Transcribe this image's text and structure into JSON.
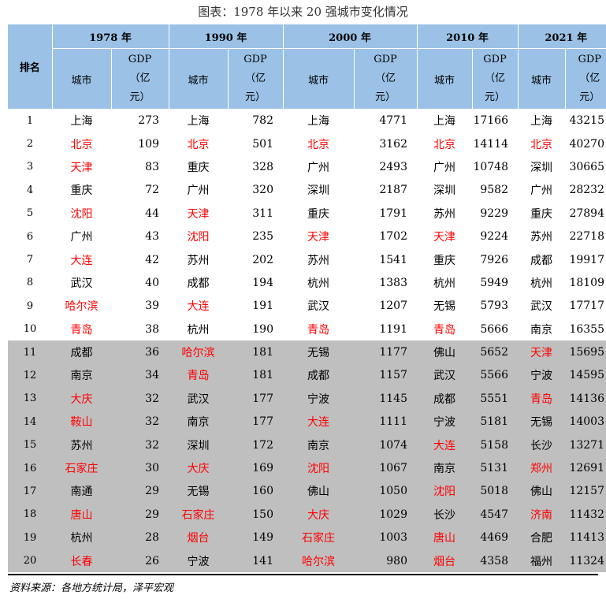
{
  "title": "图表：1978 年以来 20 强城市变化情况",
  "header": {
    "rank_label": "排名",
    "city_label": "城市",
    "gdp_line1": "GDP",
    "gdp_line2": "（亿",
    "gdp_line3": "元）",
    "years": [
      "1978 年",
      "1990 年",
      "2000 年",
      "2010 年",
      "2021 年"
    ]
  },
  "red_color": "#ff0000",
  "rows": [
    {
      "rank": "1",
      "cells": [
        [
          "上海",
          "273",
          false
        ],
        [
          "上海",
          "782",
          false
        ],
        [
          "上海",
          "4771",
          false
        ],
        [
          "上海",
          "17166",
          false
        ],
        [
          "上海",
          "43215",
          false
        ]
      ]
    },
    {
      "rank": "2",
      "cells": [
        [
          "北京",
          "109",
          true
        ],
        [
          "北京",
          "501",
          true
        ],
        [
          "北京",
          "3162",
          true
        ],
        [
          "北京",
          "14114",
          true
        ],
        [
          "北京",
          "40270",
          true
        ]
      ]
    },
    {
      "rank": "3",
      "cells": [
        [
          "天津",
          "83",
          true
        ],
        [
          "重庆",
          "328",
          false
        ],
        [
          "广州",
          "2493",
          false
        ],
        [
          "广州",
          "10748",
          false
        ],
        [
          "深圳",
          "30665",
          false
        ]
      ]
    },
    {
      "rank": "4",
      "cells": [
        [
          "重庆",
          "72",
          false
        ],
        [
          "广州",
          "320",
          false
        ],
        [
          "深圳",
          "2187",
          false
        ],
        [
          "深圳",
          "9582",
          false
        ],
        [
          "广州",
          "28232",
          false
        ]
      ]
    },
    {
      "rank": "5",
      "cells": [
        [
          "沈阳",
          "44",
          true
        ],
        [
          "天津",
          "311",
          true
        ],
        [
          "重庆",
          "1791",
          false
        ],
        [
          "苏州",
          "9229",
          false
        ],
        [
          "重庆",
          "27894",
          false
        ]
      ]
    },
    {
      "rank": "6",
      "cells": [
        [
          "广州",
          "43",
          false
        ],
        [
          "沈阳",
          "235",
          true
        ],
        [
          "天津",
          "1702",
          true
        ],
        [
          "天津",
          "9224",
          true
        ],
        [
          "苏州",
          "22718",
          false
        ]
      ]
    },
    {
      "rank": "7",
      "cells": [
        [
          "大连",
          "42",
          true
        ],
        [
          "苏州",
          "202",
          false
        ],
        [
          "苏州",
          "1541",
          false
        ],
        [
          "重庆",
          "7926",
          false
        ],
        [
          "成都",
          "19917",
          false
        ]
      ]
    },
    {
      "rank": "8",
      "cells": [
        [
          "武汉",
          "40",
          false
        ],
        [
          "成都",
          "194",
          false
        ],
        [
          "杭州",
          "1383",
          false
        ],
        [
          "杭州",
          "5949",
          false
        ],
        [
          "杭州",
          "18109",
          false
        ]
      ]
    },
    {
      "rank": "9",
      "cells": [
        [
          "哈尔滨",
          "39",
          true
        ],
        [
          "大连",
          "191",
          true
        ],
        [
          "武汉",
          "1207",
          false
        ],
        [
          "无锡",
          "5793",
          false
        ],
        [
          "武汉",
          "17717",
          false
        ]
      ]
    },
    {
      "rank": "10",
      "cells": [
        [
          "青岛",
          "38",
          true
        ],
        [
          "杭州",
          "190",
          false
        ],
        [
          "青岛",
          "1191",
          true
        ],
        [
          "青岛",
          "5666",
          true
        ],
        [
          "南京",
          "16355",
          false
        ]
      ]
    },
    {
      "rank": "11",
      "cells": [
        [
          "成都",
          "36",
          false
        ],
        [
          "哈尔滨",
          "181",
          true
        ],
        [
          "无锡",
          "1177",
          false
        ],
        [
          "佛山",
          "5652",
          false
        ],
        [
          "天津",
          "15695",
          true
        ]
      ]
    },
    {
      "rank": "12",
      "cells": [
        [
          "南京",
          "34",
          false
        ],
        [
          "青岛",
          "181",
          true
        ],
        [
          "成都",
          "1157",
          false
        ],
        [
          "武汉",
          "5566",
          false
        ],
        [
          "宁波",
          "14595",
          false
        ]
      ]
    },
    {
      "rank": "13",
      "cells": [
        [
          "大庆",
          "32",
          true
        ],
        [
          "武汉",
          "177",
          false
        ],
        [
          "宁波",
          "1145",
          false
        ],
        [
          "成都",
          "5551",
          false
        ],
        [
          "青岛",
          "14136",
          true
        ]
      ]
    },
    {
      "rank": "14",
      "cells": [
        [
          "鞍山",
          "32",
          true
        ],
        [
          "南京",
          "177",
          false
        ],
        [
          "大连",
          "1111",
          true
        ],
        [
          "宁波",
          "5181",
          false
        ],
        [
          "无锡",
          "14003",
          false
        ]
      ]
    },
    {
      "rank": "15",
      "cells": [
        [
          "苏州",
          "32",
          false
        ],
        [
          "深圳",
          "172",
          false
        ],
        [
          "南京",
          "1074",
          false
        ],
        [
          "大连",
          "5158",
          true
        ],
        [
          "长沙",
          "13271",
          false
        ]
      ]
    },
    {
      "rank": "16",
      "cells": [
        [
          "石家庄",
          "30",
          true
        ],
        [
          "大庆",
          "169",
          true
        ],
        [
          "沈阳",
          "1067",
          true
        ],
        [
          "南京",
          "5131",
          false
        ],
        [
          "郑州",
          "12691",
          true
        ]
      ]
    },
    {
      "rank": "17",
      "cells": [
        [
          "南通",
          "29",
          false
        ],
        [
          "无锡",
          "160",
          false
        ],
        [
          "佛山",
          "1050",
          false
        ],
        [
          "沈阳",
          "5018",
          true
        ],
        [
          "佛山",
          "12157",
          false
        ]
      ]
    },
    {
      "rank": "18",
      "cells": [
        [
          "唐山",
          "29",
          true
        ],
        [
          "石家庄",
          "150",
          true
        ],
        [
          "大庆",
          "1029",
          true
        ],
        [
          "长沙",
          "4547",
          false
        ],
        [
          "济南",
          "11432",
          true
        ]
      ]
    },
    {
      "rank": "19",
      "cells": [
        [
          "杭州",
          "28",
          false
        ],
        [
          "烟台",
          "149",
          true
        ],
        [
          "石家庄",
          "1003",
          true
        ],
        [
          "唐山",
          "4469",
          true
        ],
        [
          "合肥",
          "11413",
          false
        ]
      ]
    },
    {
      "rank": "20",
      "cells": [
        [
          "长春",
          "26",
          true
        ],
        [
          "宁波",
          "141",
          false
        ],
        [
          "哈尔滨",
          "980",
          true
        ],
        [
          "烟台",
          "4358",
          true
        ],
        [
          "福州",
          "11324",
          false
        ]
      ]
    }
  ],
  "source": "资料来源：各地方统计局，泽平宏观"
}
